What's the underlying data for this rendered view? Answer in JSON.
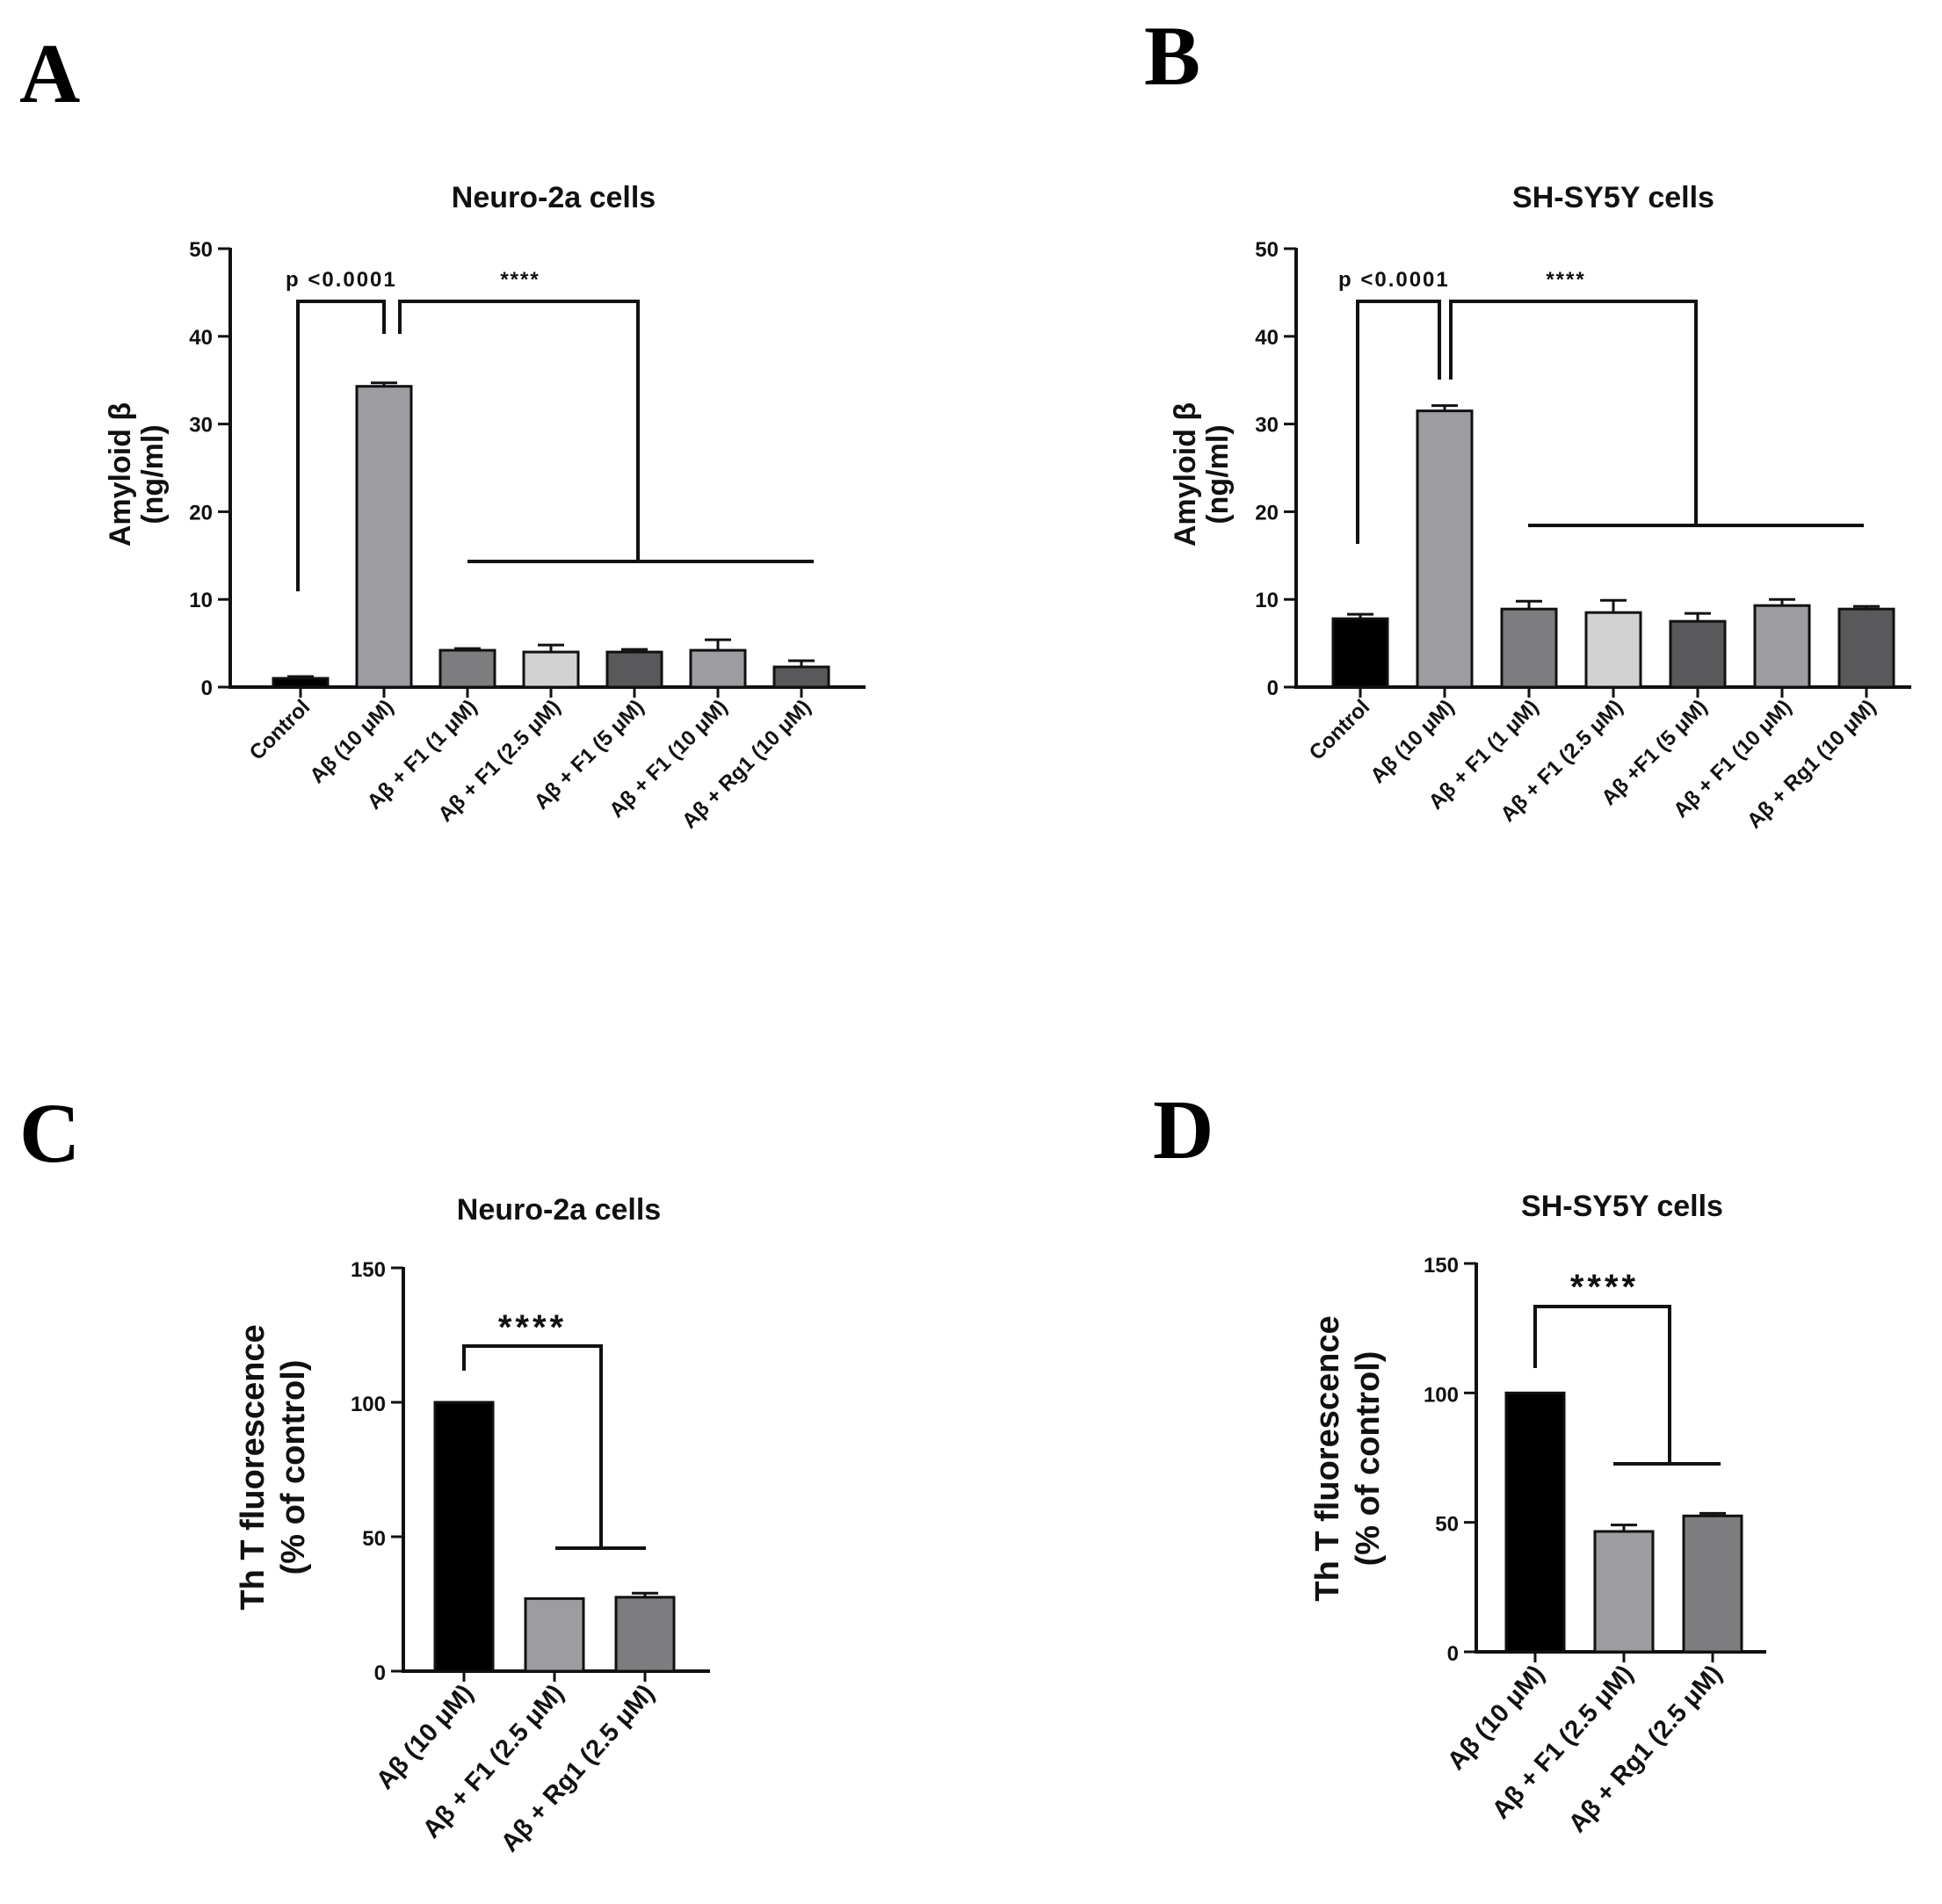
{
  "panels": [
    "A",
    "B",
    "C",
    "D"
  ],
  "chart_data": [
    {
      "panel": "A",
      "type": "bar",
      "title": "Neuro-2a cells",
      "ylabel_line1": "Amyloid β",
      "ylabel_line2": "(ng/ml)",
      "ylim": [
        0,
        50
      ],
      "yticks": [
        "0",
        "10",
        "20",
        "30",
        "40",
        "50"
      ],
      "categories": [
        "Control",
        "Aβ (10 μM)",
        "Aβ + F1 (1 μM)",
        "Aβ + F1 (2.5 μM)",
        "Aβ + F1 (5 μM)",
        "Aβ + F1 (10 μM)",
        "Aβ + Rg1 (10 μM)"
      ],
      "values": [
        1.0,
        34.3,
        4.2,
        4.0,
        4.0,
        4.2,
        2.3
      ],
      "errors": [
        0.2,
        0.4,
        0.2,
        0.8,
        0.3,
        1.2,
        0.7
      ],
      "colors": [
        "#000000",
        "#9c9ca1",
        "#7d7d80",
        "#d2d2d2",
        "#59595b",
        "#9c9ca1",
        "#59595b"
      ],
      "annotations": [
        "p <0.0001",
        "****"
      ]
    },
    {
      "panel": "B",
      "type": "bar",
      "title": "SH-SY5Y cells",
      "ylabel_line1": "Amyloid β",
      "ylabel_line2": "(ng/ml)",
      "ylim": [
        0,
        50
      ],
      "yticks": [
        "0",
        "10",
        "20",
        "30",
        "40",
        "50"
      ],
      "categories": [
        "Control",
        "Aβ (10 μM)",
        "Aβ + F1 (1 μM)",
        "Aβ + F1 (2.5 μM)",
        "Aβ +F1 (5 μM)",
        "Aβ + F1 (10 μM)",
        "Aβ + Rg1 (10 μM)"
      ],
      "values": [
        7.8,
        31.5,
        8.9,
        8.5,
        7.5,
        9.3,
        8.9
      ],
      "errors": [
        0.5,
        0.6,
        0.9,
        1.4,
        0.9,
        0.7,
        0.3
      ],
      "colors": [
        "#000000",
        "#9c9ca1",
        "#7d7d80",
        "#d2d2d2",
        "#59595b",
        "#9c9ca1",
        "#59595b"
      ],
      "annotations": [
        "p <0.0001",
        "****"
      ]
    },
    {
      "panel": "C",
      "type": "bar",
      "title": "Neuro-2a cells",
      "ylabel_line1": "Th T fluorescence",
      "ylabel_line2": "(% of control)",
      "ylim": [
        0,
        150
      ],
      "yticks": [
        "0",
        "50",
        "100",
        "150"
      ],
      "categories": [
        "Aβ (10 μM)",
        "Aβ + F1 (2.5 μM)",
        "Aβ + Rg1 (2.5 μM)"
      ],
      "values": [
        100,
        27,
        27.5
      ],
      "errors": [
        0,
        0,
        1.5
      ],
      "colors": [
        "#000000",
        "#9c9ca1",
        "#7d7d80"
      ],
      "annotations": [
        "****"
      ]
    },
    {
      "panel": "D",
      "type": "bar",
      "title": "SH-SY5Y cells",
      "ylabel_line1": "Th T fluorescence",
      "ylabel_line2": "(% of control)",
      "ylim": [
        0,
        150
      ],
      "yticks": [
        "0",
        "50",
        "100",
        "150"
      ],
      "categories": [
        "Aβ (10 μM)",
        "Aβ + F1 (2.5 μM)",
        "Aβ + Rg1 (2.5 μM)"
      ],
      "values": [
        100,
        46.5,
        52.5
      ],
      "errors": [
        0,
        2.5,
        1.0
      ],
      "colors": [
        "#000000",
        "#9c9ca1",
        "#7d7d80"
      ],
      "annotations": [
        "****"
      ]
    }
  ]
}
